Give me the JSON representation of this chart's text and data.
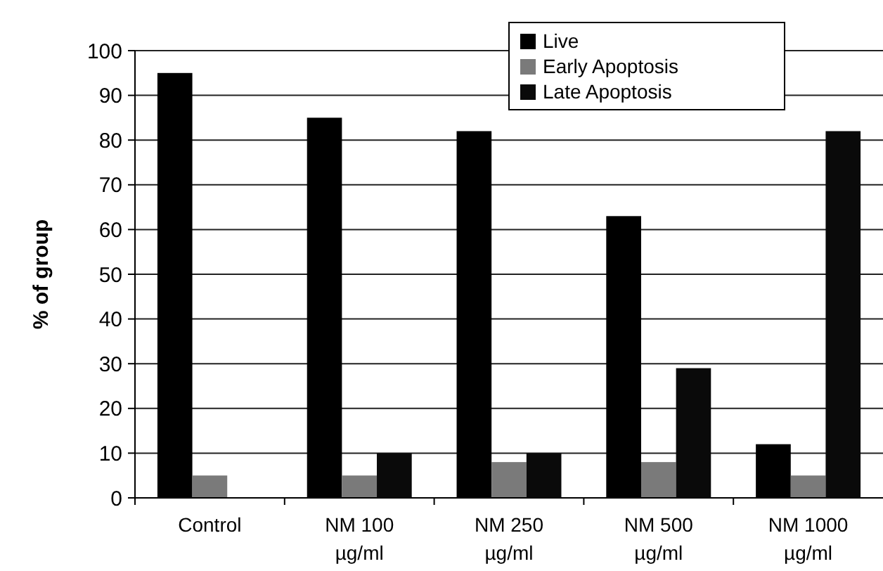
{
  "chart_data": {
    "type": "bar",
    "ylabel": "% of group",
    "categories": [
      "Control",
      "NM 100\nµg/ml",
      "NM 250\nµg/ml",
      "NM 500\nµg/ml",
      "NM 1000\nµg/ml"
    ],
    "series": [
      {
        "name": "Live",
        "color": "#000000",
        "values": [
          95,
          85,
          82,
          63,
          12
        ]
      },
      {
        "name": "Early Apoptosis",
        "color": "#7a7a7a",
        "values": [
          5,
          5,
          8,
          8,
          5
        ]
      },
      {
        "name": "Late Apoptosis",
        "color": "#0a0a0a",
        "values": [
          0,
          10,
          10,
          29,
          82
        ]
      }
    ],
    "ylim": [
      0,
      100
    ],
    "yticks": [
      0,
      10,
      20,
      30,
      40,
      50,
      60,
      70,
      80,
      90,
      100
    ],
    "grid": "y",
    "legend": "top right"
  }
}
